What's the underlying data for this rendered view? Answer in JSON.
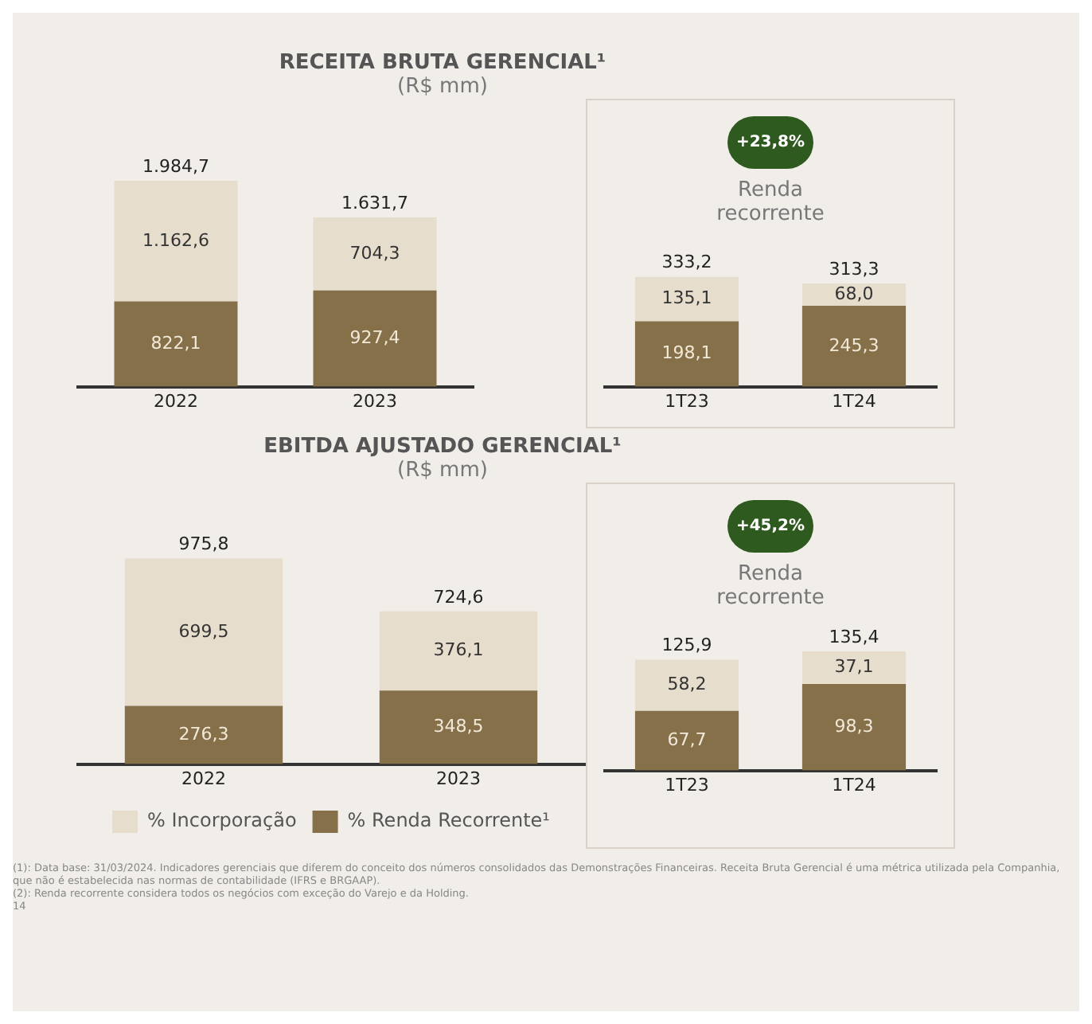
{
  "chart_data": [
    {
      "type": "bar",
      "title": "RECEITA BRUTA GERENCIAL¹",
      "subtitle": "(R$ mm)",
      "categories": [
        "2022",
        "2023"
      ],
      "stacked": true,
      "series": [
        {
          "color": "#86704a",
          "values": [
            822.1,
            927.4
          ],
          "value_labels": [
            "822,1",
            "927,4"
          ]
        },
        {
          "color": "#e6ddcc",
          "values": [
            1162.6,
            704.3
          ],
          "value_labels": [
            "1.162,6",
            "704,3"
          ]
        }
      ],
      "totals": [
        "1.984,7",
        "1.631,7"
      ]
    },
    {
      "type": "bar",
      "title": "Renda recorrente",
      "annotations": [
        "+23,8%"
      ],
      "categories": [
        "1T23",
        "1T24"
      ],
      "stacked": true,
      "series": [
        {
          "color": "#86704a",
          "values": [
            198.1,
            245.3
          ],
          "value_labels": [
            "198,1",
            "245,3"
          ]
        },
        {
          "color": "#e6ddcc",
          "values": [
            135.1,
            68.0
          ],
          "value_labels": [
            "135,1",
            "68,0"
          ]
        }
      ],
      "totals": [
        "333,2",
        "313,3"
      ]
    },
    {
      "type": "bar",
      "title": "EBITDA AJUSTADO GERENCIAL¹",
      "subtitle": "(R$ mm)",
      "categories": [
        "2022",
        "2023"
      ],
      "stacked": true,
      "legend": "bottom",
      "series": [
        {
          "name": "% Renda Recorrente¹",
          "color": "#86704a",
          "values": [
            276.3,
            348.5
          ],
          "value_labels": [
            "276,3",
            "348,5"
          ]
        },
        {
          "name": "% Incorporação",
          "color": "#e6ddcc",
          "values": [
            699.5,
            376.1
          ],
          "value_labels": [
            "699,5",
            "376,1"
          ]
        }
      ],
      "totals": [
        "975,8",
        "724,6"
      ],
      "annotations": [
        "(1): Data base: 31/03/2024. Indicadores gerenciais que diferem do conceito dos números consolidados das Demonstrações Financeiras. Receita Bruta Gerencial é uma métrica utilizada pela Companhia, que não é estabelecida nas normas de contabilidade (IFRS e BRGAAP).",
        "(2): Renda recorrente considera todos os negócios com exceção do Varejo e da Holding.",
        "14"
      ]
    },
    {
      "type": "bar",
      "title": "Renda recorrente",
      "annotations": [
        "+45,2%"
      ],
      "categories": [
        "1T23",
        "1T24"
      ],
      "stacked": true,
      "series": [
        {
          "color": "#86704a",
          "values": [
            67.7,
            98.3
          ],
          "value_labels": [
            "67,7",
            "98,3"
          ]
        },
        {
          "color": "#e6ddcc",
          "values": [
            58.2,
            37.1
          ],
          "value_labels": [
            "58,2",
            "37,1"
          ]
        }
      ],
      "totals": [
        "125,9",
        "135,4"
      ]
    }
  ]
}
